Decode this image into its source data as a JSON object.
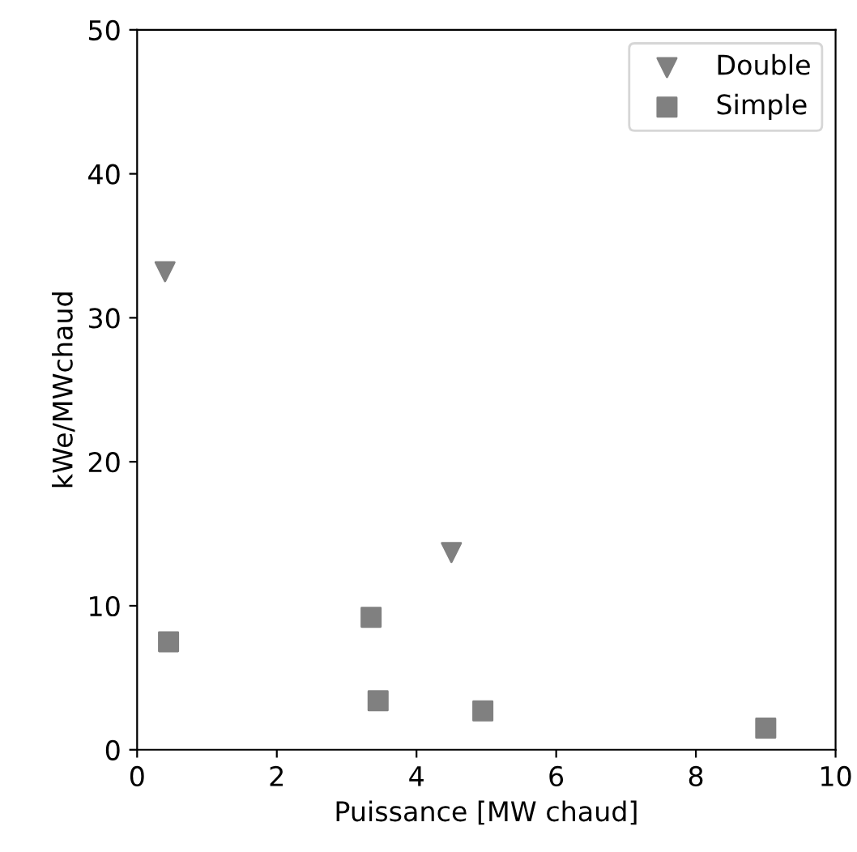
{
  "chart_data": {
    "type": "scatter",
    "xlabel": "Puissance [MW chaud]",
    "ylabel": "kWe/MWchaud",
    "series": [
      {
        "name": "Double",
        "color": "#808080",
        "marker": "triangle",
        "x": [
          0.4,
          4.5
        ],
        "values": [
          33.2,
          13.7
        ]
      },
      {
        "name": "Simple",
        "color": "#808080",
        "marker": "square",
        "x": [
          0.45,
          3.35,
          3.45,
          4.95,
          9.0
        ],
        "values": [
          7.5,
          9.2,
          3.4,
          2.7,
          1.5
        ]
      }
    ],
    "xlim": [
      0,
      10
    ],
    "xticks": [
      0,
      2,
      4,
      6,
      8,
      10
    ],
    "ylim": [
      0,
      50
    ],
    "yticks": [
      0,
      10,
      20,
      30,
      40,
      50
    ],
    "grid": false,
    "legend": "top right"
  }
}
